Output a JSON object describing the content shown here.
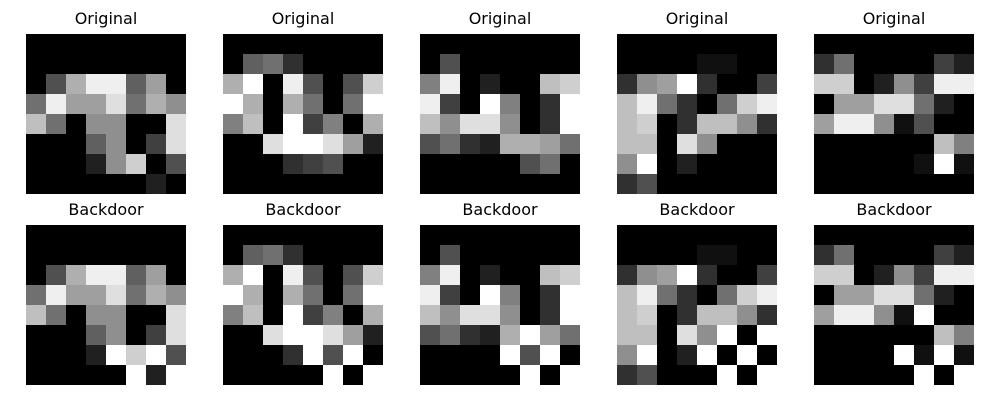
{
  "chart_data": {
    "type": "heatmap",
    "colormap": "grayscale",
    "value_range": [
      0,
      16
    ],
    "grid_size": [
      8,
      8
    ],
    "rows": [
      {
        "panels": [
          {
            "title": "Original",
            "pixels": [
              [
                0,
                0,
                0,
                0,
                0,
                0,
                0,
                0
              ],
              [
                0,
                0,
                0,
                0,
                0,
                0,
                0,
                0
              ],
              [
                0,
                5,
                11,
                15,
                15,
                6,
                10,
                0
              ],
              [
                7,
                15,
                10,
                10,
                14,
                7,
                11,
                9
              ],
              [
                12,
                7,
                0,
                9,
                9,
                0,
                0,
                14
              ],
              [
                0,
                0,
                0,
                6,
                9,
                0,
                4,
                14
              ],
              [
                0,
                0,
                0,
                2,
                9,
                13,
                0,
                5
              ],
              [
                0,
                0,
                0,
                0,
                0,
                0,
                2,
                0
              ]
            ]
          },
          {
            "title": "Original",
            "pixels": [
              [
                0,
                0,
                0,
                0,
                0,
                0,
                0,
                0
              ],
              [
                0,
                6,
                7,
                3,
                0,
                0,
                0,
                0
              ],
              [
                11,
                16,
                0,
                15,
                5,
                0,
                5,
                13
              ],
              [
                16,
                11,
                0,
                11,
                7,
                0,
                7,
                16
              ],
              [
                8,
                12,
                0,
                16,
                4,
                8,
                0,
                11
              ],
              [
                0,
                0,
                14,
                16,
                16,
                14,
                10,
                2
              ],
              [
                0,
                0,
                0,
                3,
                4,
                5,
                0,
                0
              ],
              [
                0,
                0,
                0,
                0,
                0,
                0,
                0,
                0
              ]
            ]
          },
          {
            "title": "Original",
            "pixels": [
              [
                0,
                0,
                0,
                0,
                0,
                0,
                0,
                0
              ],
              [
                0,
                5,
                0,
                0,
                0,
                0,
                0,
                0
              ],
              [
                8,
                15,
                0,
                2,
                0,
                0,
                12,
                13
              ],
              [
                15,
                4,
                0,
                16,
                8,
                0,
                3,
                16
              ],
              [
                12,
                9,
                14,
                14,
                9,
                0,
                3,
                16
              ],
              [
                5,
                7,
                3,
                2,
                11,
                11,
                10,
                7
              ],
              [
                0,
                0,
                0,
                0,
                0,
                5,
                7,
                0
              ],
              [
                0,
                0,
                0,
                0,
                0,
                0,
                0,
                0
              ]
            ]
          },
          {
            "title": "Original",
            "pixels": [
              [
                0,
                0,
                0,
                0,
                0,
                0,
                0,
                0
              ],
              [
                0,
                0,
                0,
                0,
                1,
                1,
                0,
                0
              ],
              [
                3,
                9,
                10,
                16,
                3,
                0,
                0,
                4
              ],
              [
                12,
                15,
                7,
                3,
                0,
                7,
                13,
                15
              ],
              [
                12,
                13,
                0,
                3,
                12,
                12,
                9,
                3
              ],
              [
                12,
                12,
                0,
                14,
                9,
                0,
                0,
                0
              ],
              [
                9,
                16,
                0,
                2,
                0,
                0,
                0,
                0
              ],
              [
                3,
                5,
                0,
                0,
                0,
                0,
                0,
                0
              ]
            ]
          },
          {
            "title": "Original",
            "pixels": [
              [
                0,
                0,
                0,
                0,
                0,
                0,
                0,
                0
              ],
              [
                3,
                7,
                0,
                0,
                0,
                0,
                4,
                2
              ],
              [
                13,
                13,
                0,
                2,
                9,
                4,
                15,
                15
              ],
              [
                0,
                10,
                10,
                14,
                14,
                7,
                2,
                0
              ],
              [
                10,
                15,
                15,
                9,
                1,
                5,
                0,
                0
              ],
              [
                0,
                0,
                0,
                0,
                0,
                0,
                12,
                8
              ],
              [
                0,
                0,
                0,
                0,
                0,
                1,
                16,
                1
              ],
              [
                0,
                0,
                0,
                0,
                0,
                0,
                0,
                0
              ]
            ]
          }
        ]
      },
      {
        "panels": [
          {
            "title": "Backdoor",
            "pixels": [
              [
                0,
                0,
                0,
                0,
                0,
                0,
                0,
                0
              ],
              [
                0,
                0,
                0,
                0,
                0,
                0,
                0,
                0
              ],
              [
                0,
                5,
                11,
                15,
                15,
                6,
                10,
                0
              ],
              [
                7,
                15,
                10,
                10,
                14,
                7,
                11,
                9
              ],
              [
                12,
                7,
                0,
                9,
                9,
                0,
                0,
                14
              ],
              [
                0,
                0,
                0,
                6,
                9,
                0,
                4,
                14
              ],
              [
                0,
                0,
                0,
                2,
                16,
                13,
                16,
                5
              ],
              [
                0,
                0,
                0,
                0,
                0,
                16,
                2,
                16
              ]
            ]
          },
          {
            "title": "Backdoor",
            "pixels": [
              [
                0,
                0,
                0,
                0,
                0,
                0,
                0,
                0
              ],
              [
                0,
                6,
                7,
                3,
                0,
                0,
                0,
                0
              ],
              [
                11,
                16,
                0,
                15,
                5,
                0,
                5,
                13
              ],
              [
                16,
                11,
                0,
                11,
                7,
                0,
                7,
                16
              ],
              [
                8,
                12,
                0,
                16,
                4,
                8,
                0,
                11
              ],
              [
                0,
                0,
                14,
                16,
                16,
                14,
                10,
                2
              ],
              [
                0,
                0,
                0,
                3,
                16,
                5,
                16,
                0
              ],
              [
                0,
                0,
                0,
                0,
                0,
                16,
                0,
                16
              ]
            ]
          },
          {
            "title": "Backdoor",
            "pixels": [
              [
                0,
                0,
                0,
                0,
                0,
                0,
                0,
                0
              ],
              [
                0,
                5,
                0,
                0,
                0,
                0,
                0,
                0
              ],
              [
                8,
                15,
                0,
                2,
                0,
                0,
                12,
                13
              ],
              [
                15,
                4,
                0,
                16,
                8,
                0,
                3,
                16
              ],
              [
                12,
                9,
                14,
                14,
                9,
                0,
                3,
                16
              ],
              [
                5,
                7,
                3,
                2,
                11,
                16,
                10,
                7
              ],
              [
                0,
                0,
                0,
                0,
                16,
                5,
                16,
                0
              ],
              [
                0,
                0,
                0,
                0,
                0,
                16,
                0,
                16
              ]
            ]
          },
          {
            "title": "Backdoor",
            "pixels": [
              [
                0,
                0,
                0,
                0,
                0,
                0,
                0,
                0
              ],
              [
                0,
                0,
                0,
                0,
                1,
                1,
                0,
                0
              ],
              [
                3,
                9,
                10,
                16,
                3,
                0,
                0,
                4
              ],
              [
                12,
                15,
                7,
                3,
                0,
                7,
                13,
                15
              ],
              [
                12,
                13,
                0,
                3,
                12,
                12,
                9,
                3
              ],
              [
                12,
                12,
                0,
                14,
                9,
                16,
                0,
                16
              ],
              [
                9,
                16,
                0,
                2,
                16,
                0,
                16,
                0
              ],
              [
                3,
                5,
                0,
                0,
                0,
                16,
                0,
                16
              ]
            ]
          },
          {
            "title": "Backdoor",
            "pixels": [
              [
                0,
                0,
                0,
                0,
                0,
                0,
                0,
                0
              ],
              [
                3,
                7,
                0,
                0,
                0,
                0,
                4,
                2
              ],
              [
                13,
                13,
                0,
                2,
                9,
                4,
                15,
                15
              ],
              [
                0,
                10,
                10,
                14,
                14,
                7,
                2,
                0
              ],
              [
                10,
                15,
                15,
                9,
                1,
                16,
                0,
                0
              ],
              [
                0,
                0,
                0,
                0,
                0,
                0,
                12,
                8
              ],
              [
                0,
                0,
                0,
                0,
                16,
                1,
                16,
                1
              ],
              [
                0,
                0,
                0,
                0,
                0,
                16,
                0,
                16
              ]
            ]
          }
        ]
      }
    ]
  }
}
